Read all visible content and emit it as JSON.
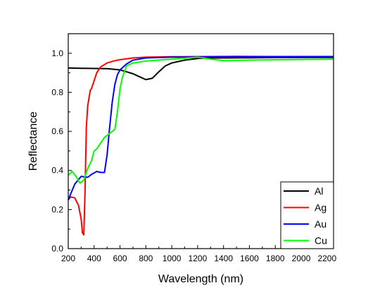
{
  "chart_data": {
    "type": "line",
    "title": "",
    "xlabel": "Wavelength (nm)",
    "ylabel": "Reflectance",
    "xlim": [
      200,
      2250
    ],
    "ylim": [
      0.0,
      1.1
    ],
    "x_ticks": [
      200,
      400,
      600,
      800,
      1000,
      1200,
      1400,
      1600,
      1800,
      2000,
      2200
    ],
    "x_tick_labels": [
      "200",
      "400",
      "600",
      "800",
      "1000",
      "1200",
      "1400",
      "1600",
      "1800",
      "2000",
      "2200"
    ],
    "y_ticks": [
      0.0,
      0.2,
      0.4,
      0.6,
      0.8,
      1.0
    ],
    "y_tick_labels": [
      "0.0",
      "0.2",
      "0.4",
      "0.6",
      "0.8",
      "1.0"
    ],
    "grid": false,
    "legend_position": "bottom-right",
    "series": [
      {
        "name": "Al",
        "color": "#000000",
        "x": [
          200,
          300,
          400,
          500,
          600,
          650,
          700,
          750,
          800,
          850,
          900,
          950,
          1000,
          1100,
          1200,
          1300,
          1400,
          1600,
          1800,
          2000,
          2250
        ],
        "y": [
          0.925,
          0.923,
          0.922,
          0.921,
          0.915,
          0.905,
          0.895,
          0.88,
          0.865,
          0.872,
          0.905,
          0.935,
          0.95,
          0.965,
          0.973,
          0.976,
          0.976,
          0.977,
          0.978,
          0.978,
          0.979
        ]
      },
      {
        "name": "Ag",
        "color": "#ff0000",
        "x": [
          200,
          220,
          250,
          280,
          300,
          310,
          320,
          330,
          340,
          350,
          370,
          380,
          400,
          420,
          450,
          500,
          550,
          600,
          700,
          800,
          1000,
          1500,
          2000,
          2250
        ],
        "y": [
          0.25,
          0.265,
          0.26,
          0.22,
          0.15,
          0.08,
          0.07,
          0.3,
          0.62,
          0.73,
          0.81,
          0.82,
          0.86,
          0.9,
          0.93,
          0.95,
          0.96,
          0.967,
          0.976,
          0.98,
          0.982,
          0.984,
          0.982,
          0.982
        ]
      },
      {
        "name": "Au",
        "color": "#0000ff",
        "x": [
          200,
          250,
          300,
          350,
          380,
          420,
          450,
          480,
          500,
          520,
          540,
          560,
          580,
          600,
          650,
          700,
          800,
          1000,
          1500,
          2000,
          2250
        ],
        "y": [
          0.25,
          0.33,
          0.37,
          0.365,
          0.38,
          0.395,
          0.39,
          0.39,
          0.48,
          0.62,
          0.75,
          0.84,
          0.89,
          0.915,
          0.945,
          0.965,
          0.976,
          0.98,
          0.982,
          0.983,
          0.983
        ]
      },
      {
        "name": "Cu",
        "color": "#00ff00",
        "x": [
          200,
          230,
          260,
          290,
          320,
          350,
          380,
          400,
          420,
          450,
          480,
          500,
          540,
          560,
          580,
          600,
          620,
          650,
          700,
          800,
          1000,
          1200,
          1300,
          1400,
          1600,
          2000,
          2250
        ],
        "y": [
          0.375,
          0.395,
          0.37,
          0.335,
          0.35,
          0.41,
          0.45,
          0.5,
          0.51,
          0.54,
          0.57,
          0.58,
          0.6,
          0.61,
          0.7,
          0.82,
          0.88,
          0.935,
          0.95,
          0.96,
          0.97,
          0.98,
          0.97,
          0.962,
          0.965,
          0.968,
          0.97
        ]
      }
    ]
  }
}
